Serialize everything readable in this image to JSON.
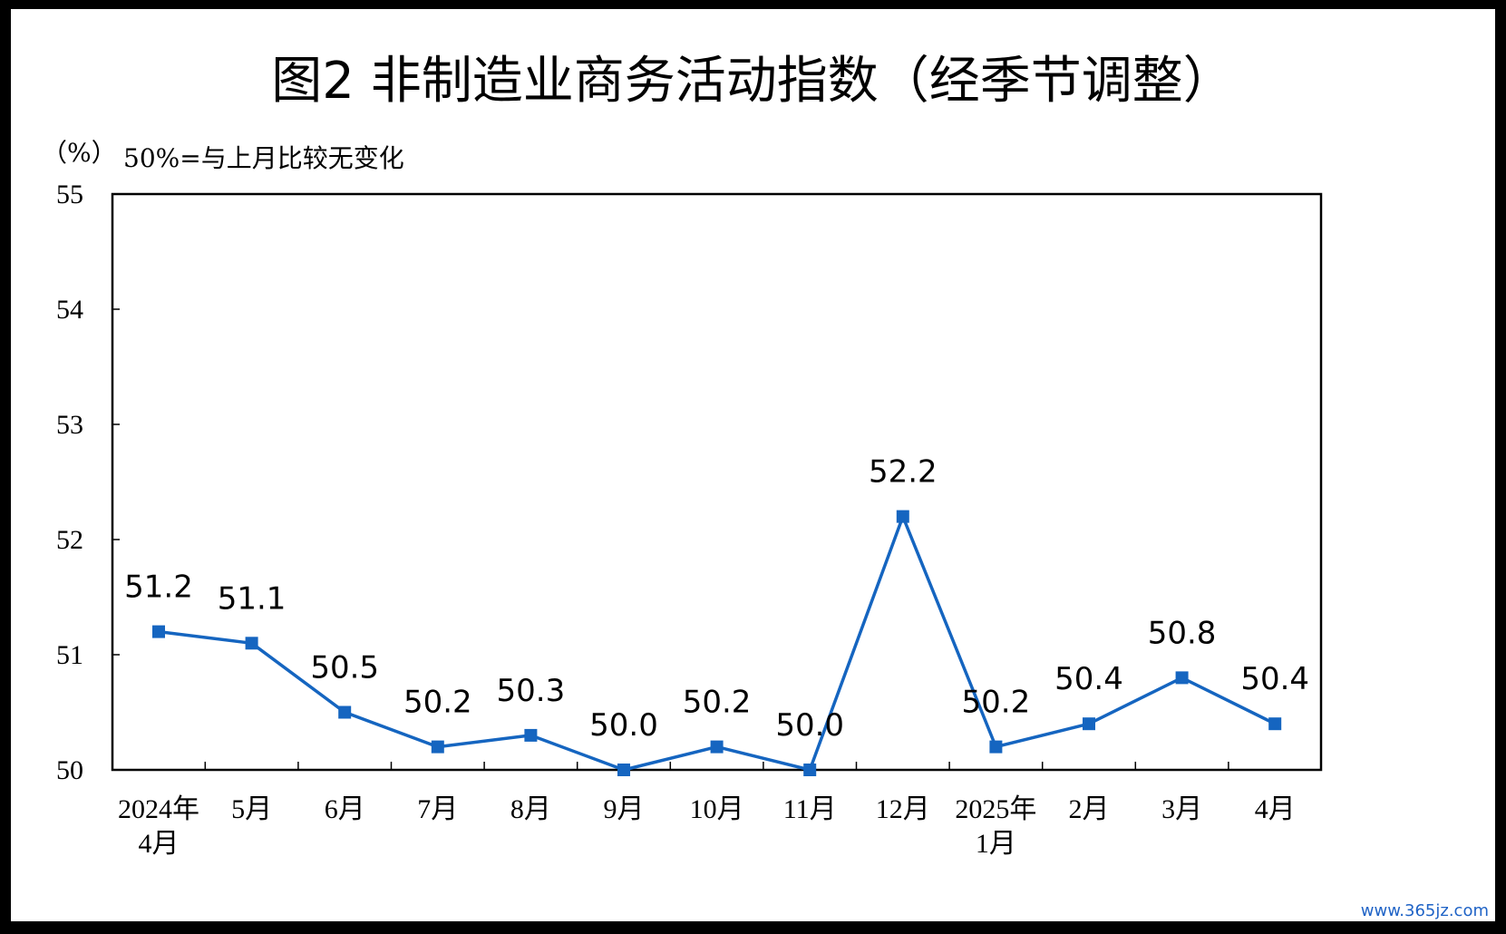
{
  "chart_data": {
    "type": "line",
    "title": "图2  非制造业商务活动指数（经季节调整）",
    "unit_label": "（%）",
    "note": "50%=与上月比较无变化",
    "categories": [
      [
        "2024年",
        "4月"
      ],
      [
        "5月"
      ],
      [
        "6月"
      ],
      [
        "7月"
      ],
      [
        "8月"
      ],
      [
        "9月"
      ],
      [
        "10月"
      ],
      [
        "11月"
      ],
      [
        "12月"
      ],
      [
        "2025年",
        "1月"
      ],
      [
        "2月"
      ],
      [
        "3月"
      ],
      [
        "4月"
      ]
    ],
    "series": [
      {
        "values": [
          51.2,
          51.1,
          50.5,
          50.2,
          50.3,
          50.0,
          50.2,
          50.0,
          52.2,
          50.2,
          50.4,
          50.8,
          50.4
        ],
        "labels": [
          "51.2",
          "51.1",
          "50.5",
          "50.2",
          "50.3",
          "50.0",
          "50.2",
          "50.0",
          "52.2",
          "50.2",
          "50.4",
          "50.8",
          "50.4"
        ],
        "color": "#1565c0"
      }
    ],
    "ylim": [
      50,
      55
    ],
    "yticks": [
      "50",
      "51",
      "52",
      "53",
      "54",
      "55"
    ],
    "grid": false,
    "legend": "none"
  },
  "watermark": "www.365jz.com"
}
